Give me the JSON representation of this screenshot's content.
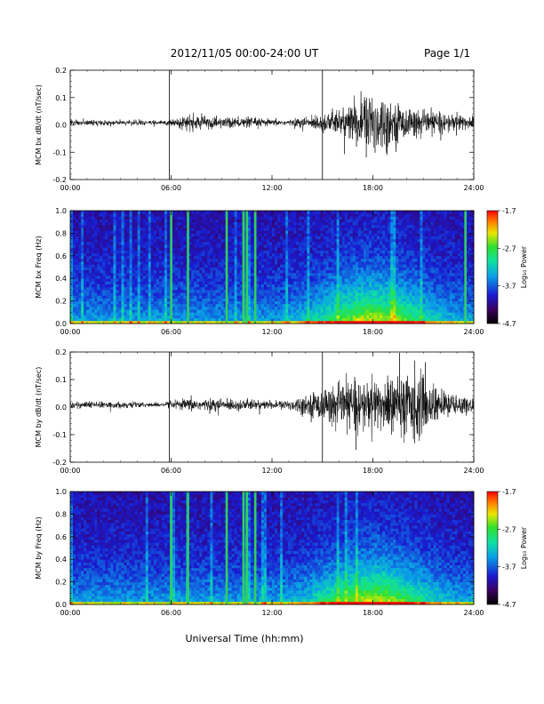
{
  "header": {
    "date_range": "2012/11/05  00:00-24:00 UT",
    "page": "Page 1/1"
  },
  "xaxis_title": "Universal Time (hh:mm)",
  "chart_data": [
    {
      "type": "line",
      "ylabel": "MCM bx dB/dt (nT/sec)",
      "xlim": [
        0,
        24
      ],
      "ylim": [
        -0.2,
        0.2
      ],
      "x_ticks": [
        "00:00",
        "06:00",
        "12:00",
        "18:00",
        "24:00"
      ],
      "y_ticks": [
        "0.2",
        "0.1",
        "0.0",
        "-0.1",
        "-0.2"
      ],
      "vertical_markers": [
        5.9,
        15.0
      ],
      "envelope": {
        "x": [
          0,
          2,
          4,
          5.5,
          6.5,
          7,
          8,
          9,
          10,
          11,
          12,
          13,
          14,
          15,
          16,
          17,
          17.5,
          18,
          18.5,
          19,
          20,
          21,
          22,
          23,
          24
        ],
        "amplitude": [
          0.012,
          0.01,
          0.01,
          0.008,
          0.02,
          0.03,
          0.025,
          0.022,
          0.02,
          0.018,
          0.012,
          0.012,
          0.02,
          0.035,
          0.05,
          0.09,
          0.12,
          0.13,
          0.12,
          0.09,
          0.06,
          0.045,
          0.04,
          0.035,
          0.025
        ]
      }
    },
    {
      "type": "heatmap",
      "ylabel": "MCM bx Freq (Hz)",
      "xlim": [
        0,
        24
      ],
      "ylim": [
        0.0,
        1.0
      ],
      "x_ticks": [
        "00:00",
        "06:00",
        "12:00",
        "18:00",
        "24:00"
      ],
      "y_ticks": [
        "1.0",
        "0.8",
        "0.6",
        "0.4",
        "0.2",
        "0.0"
      ],
      "colorbar": {
        "label": "Log₁₀ Power",
        "ticks": [
          "-1.7",
          "-2.7",
          "-3.7",
          "-4.7"
        ],
        "range": [
          -4.7,
          -1.7
        ]
      },
      "bright_lines": [
        6.0,
        7.0,
        9.3,
        10.3,
        10.5,
        11.0,
        23.5
      ],
      "activity_center": 18.0
    },
    {
      "type": "line",
      "ylabel": "MCM by dB/dt (nT/sec)",
      "xlim": [
        0,
        24
      ],
      "ylim": [
        -0.2,
        0.2
      ],
      "x_ticks": [
        "00:00",
        "06:00",
        "12:00",
        "18:00",
        "24:00"
      ],
      "y_ticks": [
        "0.2",
        "0.1",
        "0.0",
        "-0.1",
        "-0.2"
      ],
      "vertical_markers": [
        5.9,
        15.0
      ],
      "envelope": {
        "x": [
          0,
          2,
          4,
          5.5,
          6.5,
          7,
          8,
          9,
          10,
          11,
          12,
          13,
          14,
          15,
          16,
          17,
          18,
          19,
          20,
          20.5,
          21,
          22,
          23,
          24
        ],
        "amplitude": [
          0.015,
          0.012,
          0.012,
          0.008,
          0.018,
          0.025,
          0.022,
          0.022,
          0.022,
          0.02,
          0.015,
          0.02,
          0.04,
          0.06,
          0.08,
          0.1,
          0.1,
          0.11,
          0.13,
          0.15,
          0.11,
          0.06,
          0.04,
          0.03
        ]
      }
    },
    {
      "type": "heatmap",
      "ylabel": "MCM by Freq (Hz)",
      "xlim": [
        0,
        24
      ],
      "ylim": [
        0.0,
        1.0
      ],
      "x_ticks": [
        "00:00",
        "06:00",
        "12:00",
        "18:00",
        "24:00"
      ],
      "y_ticks": [
        "1.0",
        "0.8",
        "0.6",
        "0.4",
        "0.2",
        "0.0"
      ],
      "colorbar": {
        "label": "Log₁₀ Power",
        "ticks": [
          "-1.7",
          "-2.7",
          "-3.7",
          "-4.7"
        ],
        "range": [
          -4.7,
          -1.7
        ]
      },
      "bright_lines": [
        6.0,
        7.0,
        9.3,
        10.3,
        10.5,
        11.0
      ],
      "activity_center": 18.0
    }
  ]
}
